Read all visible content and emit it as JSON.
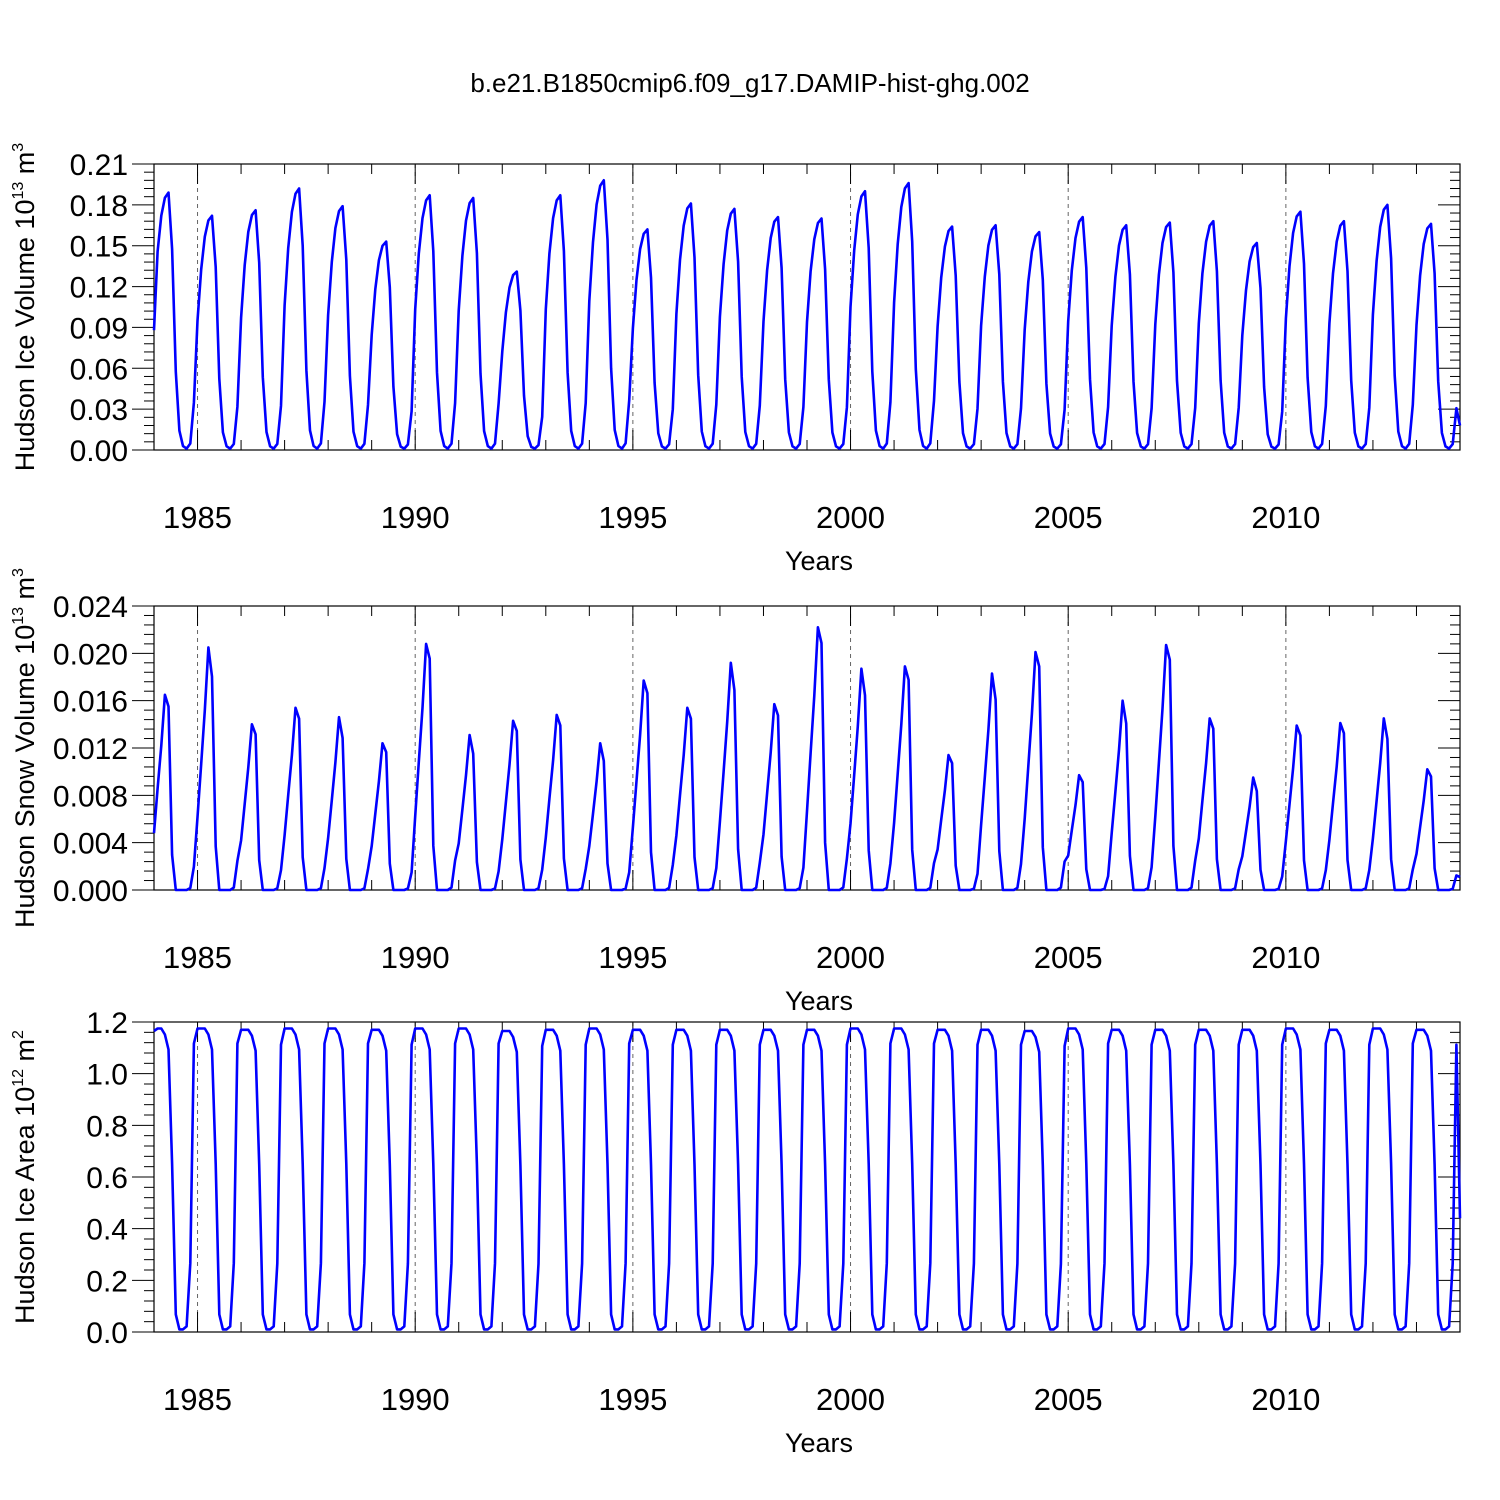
{
  "figure_title": "b.e21.B1850cmip6.f09_g17.DAMIP-hist-ghg.002",
  "chart_data": [
    {
      "type": "line",
      "title": "",
      "xlabel": "Years",
      "ylabel": "Hudson Ice Volume 10",
      "ylabel_exponent": "13",
      "ylabel_unit": "m",
      "ylabel_unit_exponent": "3",
      "xlim": [
        1984,
        2014
      ],
      "ylim": [
        0,
        0.21
      ],
      "yticks": [
        "0.00",
        "0.03",
        "0.06",
        "0.09",
        "0.12",
        "0.15",
        "0.18",
        "0.21"
      ],
      "xticks": [
        "1985",
        "1990",
        "1995",
        "2000",
        "2005",
        "2010"
      ],
      "grid": "dashed vertical lines at major x ticks",
      "series": [
        {
          "name": "Hudson Ice Volume",
          "color": "#0000ff",
          "start_year": 1984,
          "step_years": 0.083333,
          "annual_peaks": [
            0.189,
            0.172,
            0.176,
            0.192,
            0.179,
            0.153,
            0.187,
            0.185,
            0.131,
            0.187,
            0.198,
            0.162,
            0.181,
            0.177,
            0.171,
            0.17,
            0.19,
            0.196,
            0.164,
            0.165,
            0.16,
            0.171,
            0.165,
            0.167,
            0.168,
            0.152,
            0.175,
            0.168,
            0.18,
            0.166
          ],
          "annual_minimum": 0.001,
          "first_value": 0.088,
          "last_value": 0.018
        }
      ]
    },
    {
      "type": "line",
      "title": "",
      "xlabel": "Years",
      "ylabel": "Hudson Snow Volume 10",
      "ylabel_exponent": "13",
      "ylabel_unit": "m",
      "ylabel_unit_exponent": "3",
      "xlim": [
        1984,
        2014
      ],
      "ylim": [
        0,
        0.024
      ],
      "yticks": [
        "0.000",
        "0.004",
        "0.008",
        "0.012",
        "0.016",
        "0.020",
        "0.024"
      ],
      "xticks": [
        "1985",
        "1990",
        "1995",
        "2000",
        "2005",
        "2010"
      ],
      "grid": "dashed vertical lines at major x ticks",
      "series": [
        {
          "name": "Hudson Snow Volume",
          "color": "#0000ff",
          "start_year": 1984,
          "step_years": 0.083333,
          "annual_peaks": [
            0.0165,
            0.0205,
            0.014,
            0.0154,
            0.0146,
            0.0124,
            0.0208,
            0.0131,
            0.0143,
            0.0148,
            0.0124,
            0.0177,
            0.0154,
            0.0192,
            0.0157,
            0.0222,
            0.0187,
            0.0189,
            0.0114,
            0.0183,
            0.0201,
            0.0097,
            0.016,
            0.0207,
            0.0145,
            0.0095,
            0.0139,
            0.0141,
            0.0145,
            0.0102
          ],
          "annual_minimum": 0.0,
          "first_value": 0.0048,
          "last_value": 0.0011
        }
      ]
    },
    {
      "type": "line",
      "title": "",
      "xlabel": "Years",
      "ylabel": "Hudson Ice Area 10",
      "ylabel_exponent": "12",
      "ylabel_unit": "m",
      "ylabel_unit_exponent": "2",
      "xlim": [
        1984,
        2014
      ],
      "ylim": [
        0,
        1.2
      ],
      "yticks": [
        "0.0",
        "0.2",
        "0.4",
        "0.6",
        "0.8",
        "1.0",
        "1.2"
      ],
      "xticks": [
        "1985",
        "1990",
        "1995",
        "2000",
        "2005",
        "2010"
      ],
      "grid": "dashed vertical lines at major x ticks",
      "series": [
        {
          "name": "Hudson Ice Area",
          "color": "#0000ff",
          "start_year": 1984,
          "step_years": 0.083333,
          "annual_peaks": [
            1.175,
            1.175,
            1.17,
            1.175,
            1.175,
            1.17,
            1.175,
            1.175,
            1.165,
            1.17,
            1.175,
            1.17,
            1.17,
            1.17,
            1.17,
            1.17,
            1.175,
            1.175,
            1.17,
            1.17,
            1.165,
            1.175,
            1.17,
            1.17,
            1.17,
            1.17,
            1.175,
            1.17,
            1.175,
            1.17
          ],
          "annual_minimum": 0.01,
          "first_value": 1.165,
          "last_value": 0.44
        }
      ]
    }
  ]
}
